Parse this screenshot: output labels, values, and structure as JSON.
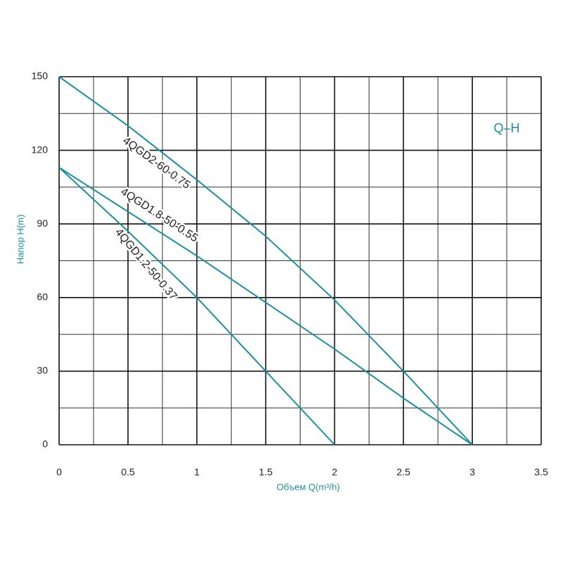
{
  "chart_data": {
    "type": "line",
    "annotation": "Q–H",
    "x_label": "Объем Q(m³/h)",
    "y_label": "Напор H(m)",
    "x": [
      0,
      0.5,
      1,
      1.5,
      2,
      2.5,
      3
    ],
    "series": [
      {
        "name": "4QGD2-60-0.75",
        "color": "#1a8fa0",
        "values": [
          150,
          130,
          108,
          85,
          59,
          30,
          0
        ]
      },
      {
        "name": "4QGD1.8-50-0.55",
        "color": "#1a8fa0",
        "values": [
          113,
          95,
          77,
          58,
          39,
          19,
          0
        ]
      },
      {
        "name": "4QGD1.2-50-0.37",
        "color": "#1a8fa0",
        "values": [
          113,
          87,
          60,
          30,
          0,
          null,
          null
        ]
      }
    ],
    "xlim": [
      0,
      3.5
    ],
    "xticks": [
      0,
      0.5,
      1,
      1.5,
      2,
      2.5,
      3,
      3.5
    ],
    "ylim": [
      0,
      150
    ],
    "yticks": [
      0,
      30,
      60,
      90,
      120,
      150
    ],
    "x_minor_grid": [
      0.25,
      0.75,
      1.25,
      1.75,
      2.25,
      2.75,
      3.25
    ],
    "y_minor_grid": [
      15,
      45,
      75,
      105,
      135
    ],
    "grid": true
  }
}
